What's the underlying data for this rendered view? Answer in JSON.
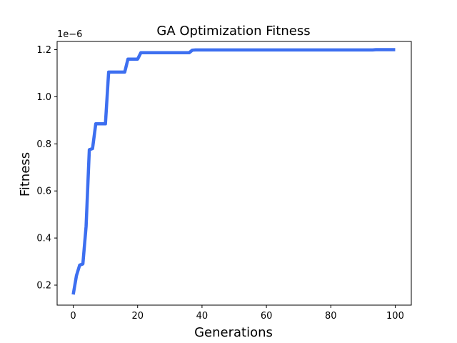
{
  "chart_data": {
    "type": "line",
    "title": "GA Optimization Fitness",
    "xlabel": "Generations",
    "ylabel": "Fitness",
    "y_offset_label": "1e−6",
    "xlim": [
      -5,
      105
    ],
    "ylim": [
      0.115,
      1.235
    ],
    "x_ticks": [
      0,
      20,
      40,
      60,
      80,
      100
    ],
    "x_tick_labels": [
      "0",
      "20",
      "40",
      "60",
      "80",
      "100"
    ],
    "y_ticks": [
      0.2,
      0.4,
      0.6,
      0.8,
      1.0,
      1.2
    ],
    "y_tick_labels": [
      "0.2",
      "0.4",
      "0.6",
      "0.8",
      "1.0",
      "1.2"
    ],
    "grid": false,
    "line_color": "#3d6ff0",
    "series": [
      {
        "x": [
          0,
          1,
          2,
          3,
          4,
          5,
          6,
          7,
          8,
          9,
          10,
          11,
          12,
          13,
          14,
          15,
          16,
          17,
          18,
          19,
          20,
          21,
          22,
          25,
          30,
          35,
          36,
          37,
          38,
          40,
          50,
          60,
          70,
          80,
          90,
          93,
          94,
          95,
          100
        ],
        "y": [
          0.16,
          0.24,
          0.285,
          0.29,
          0.45,
          0.775,
          0.78,
          0.885,
          0.885,
          0.885,
          0.885,
          1.105,
          1.105,
          1.105,
          1.105,
          1.105,
          1.105,
          1.16,
          1.16,
          1.16,
          1.16,
          1.187,
          1.187,
          1.187,
          1.187,
          1.187,
          1.187,
          1.198,
          1.199,
          1.199,
          1.199,
          1.199,
          1.199,
          1.199,
          1.199,
          1.199,
          1.2,
          1.2,
          1.2
        ]
      }
    ]
  }
}
